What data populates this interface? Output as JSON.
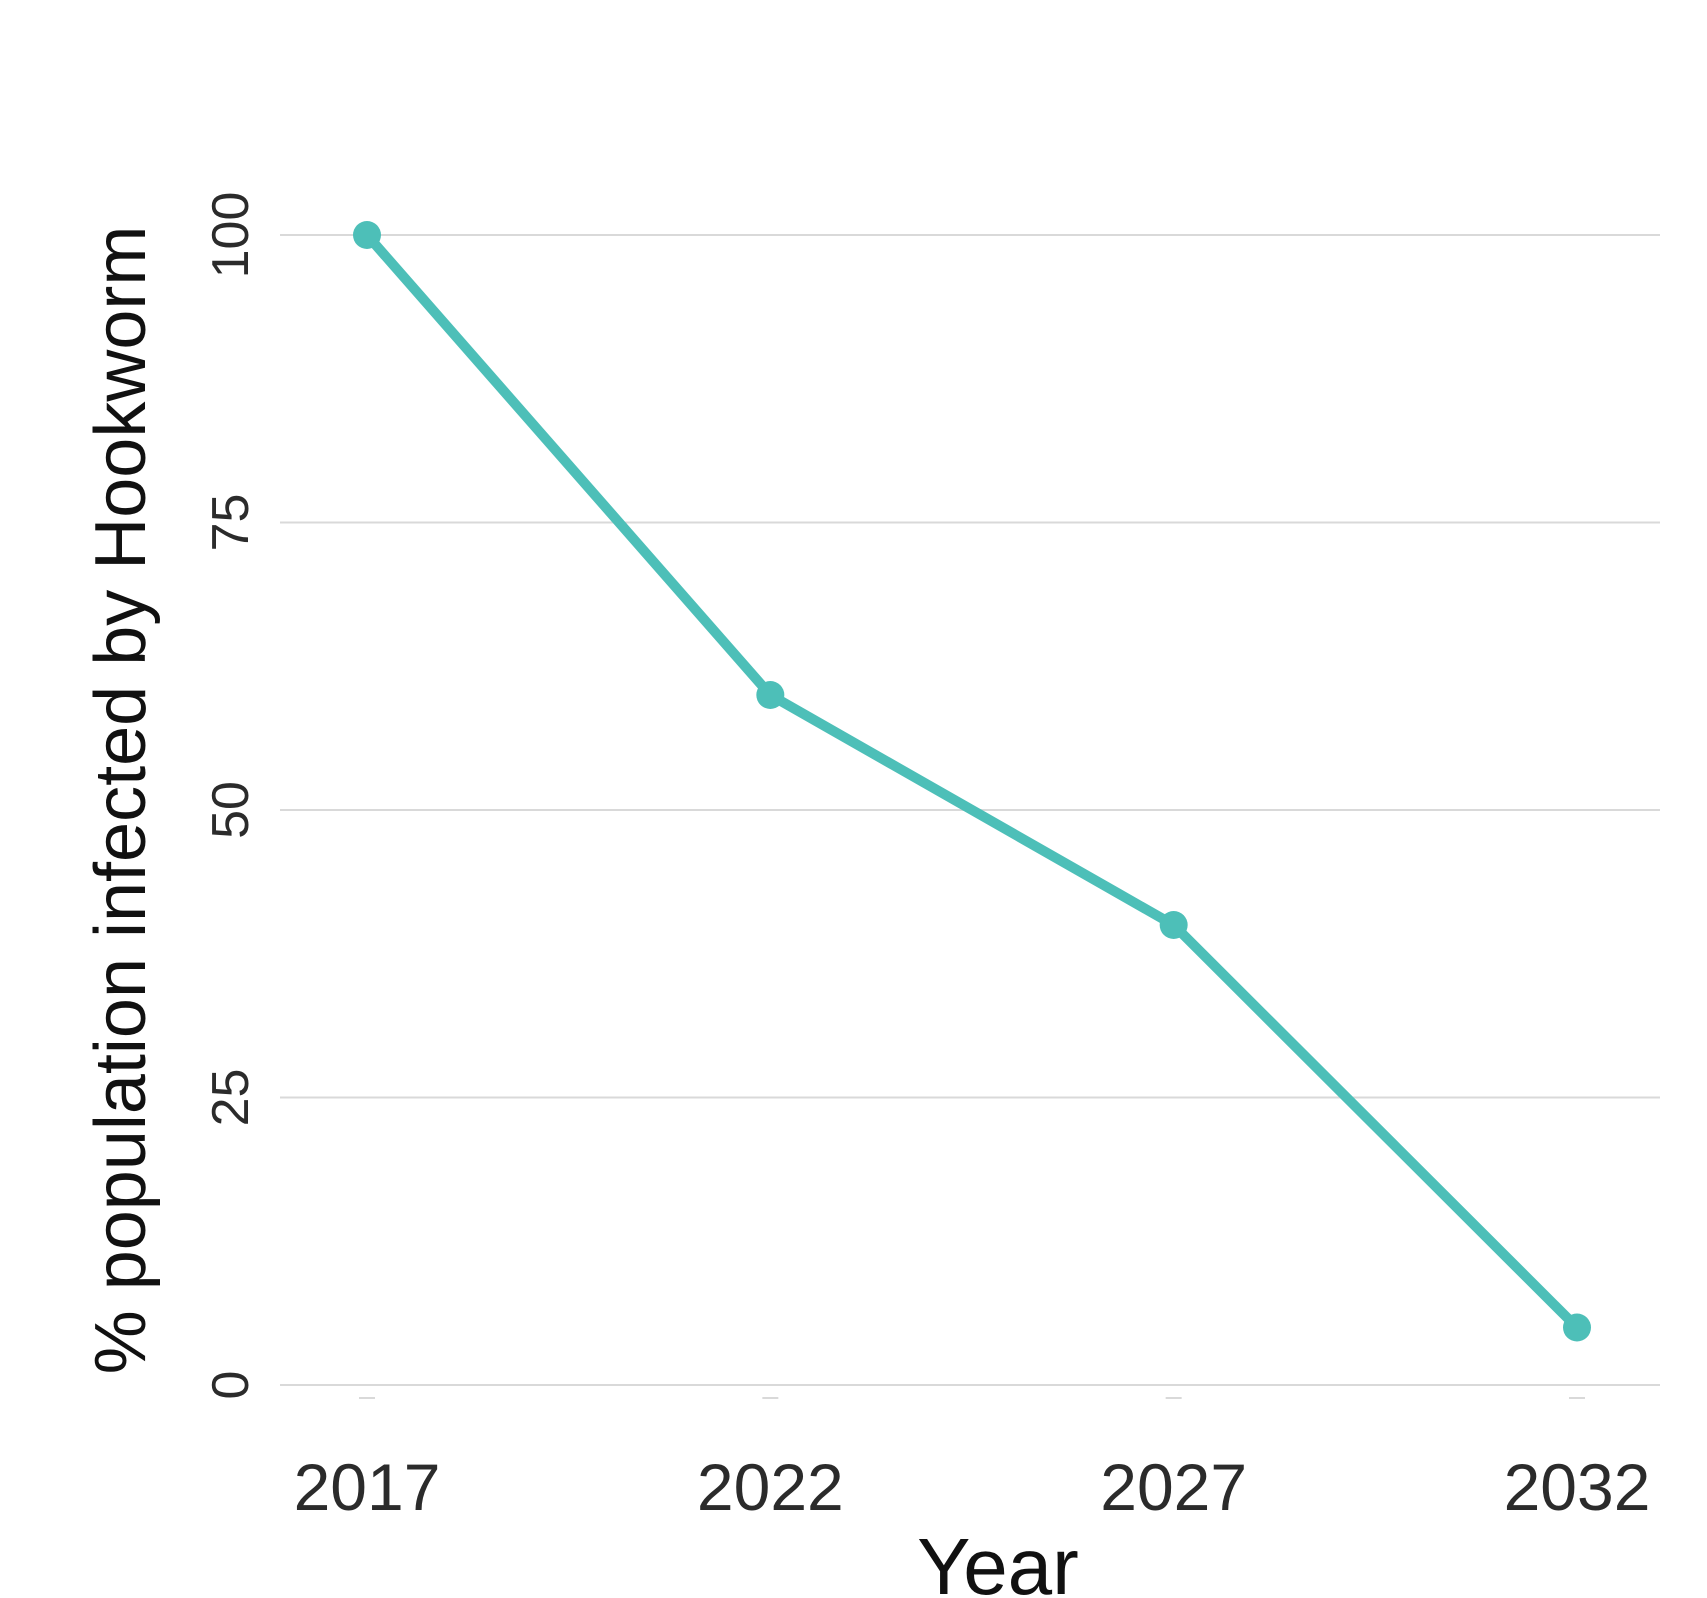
{
  "chart_data": {
    "type": "line",
    "title": "",
    "xlabel": "Year",
    "ylabel": "% population infected by Hookworm",
    "x": [
      2017,
      2022,
      2027,
      2032
    ],
    "x_tick_labels": [
      "2017",
      "2022",
      "2027",
      "2032"
    ],
    "y_ticks": [
      0,
      25,
      50,
      75,
      100
    ],
    "y_tick_labels": [
      "0",
      "25",
      "50",
      "75",
      "100"
    ],
    "ylim": [
      0,
      100
    ],
    "series": [
      {
        "values": [
          100,
          60,
          40,
          5
        ],
        "color": "#4dbfb8"
      }
    ],
    "grid": "horizontal",
    "legend": "none"
  }
}
